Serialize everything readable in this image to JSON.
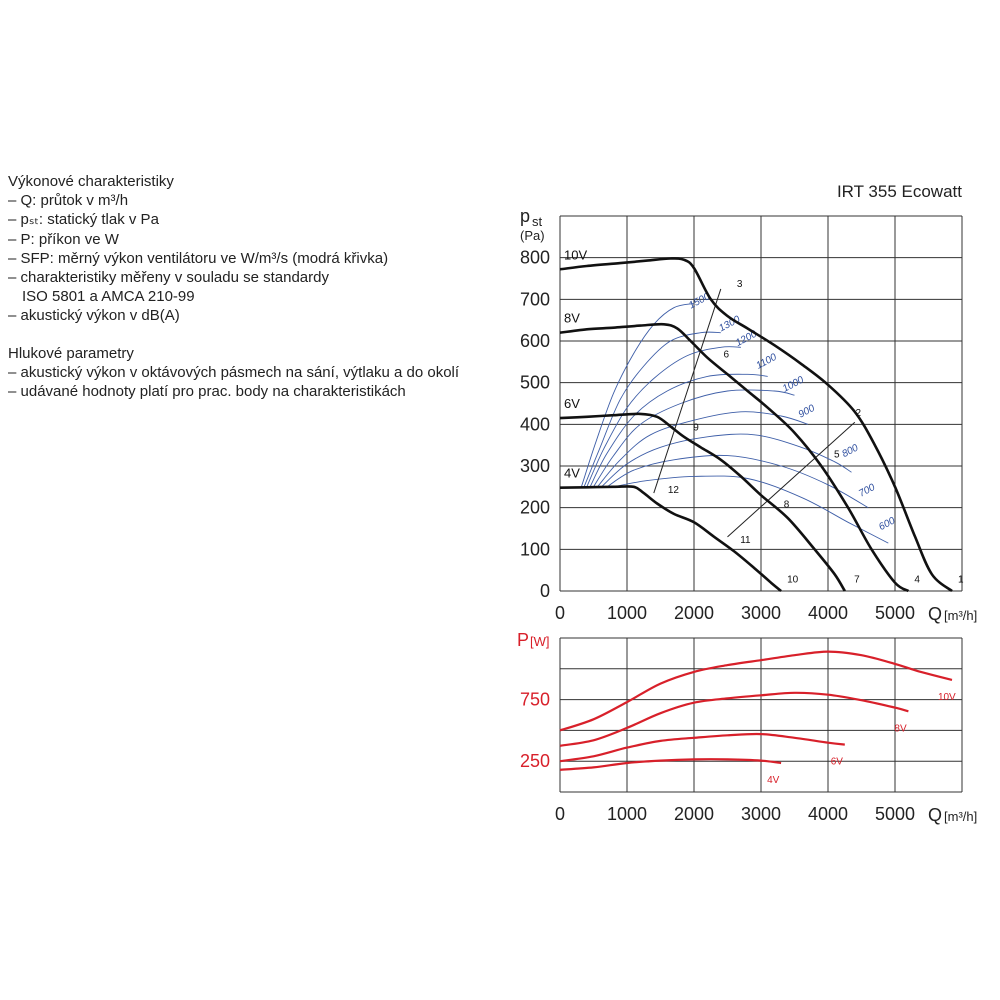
{
  "description": {
    "heading1": "Výkonové charakteristiky",
    "lines1": [
      "– Q: průtok v m³/h",
      "– pₛₜ: statický tlak v Pa",
      "– P: příkon ve W",
      "– SFP: měrný výkon ventilátoru ve W/m³/s (modrá křivka)",
      "– charakteristiky měřeny v souladu se standardy",
      "ISO 5801 a AMCA 210-99",
      "– akustický výkon v dB(A)"
    ],
    "heading2": "Hlukové parametry",
    "lines2": [
      "– akustický výkon v oktávových pásmech na sání, výtlaku a do okolí",
      "– udávané hodnoty platí pro prac. body na charakteristikách"
    ]
  },
  "chart_data": [
    {
      "type": "line",
      "title": "IRT 355 Ecowatt",
      "ylabel": "pst",
      "ylabel_unit": "(Pa)",
      "xlabel": "Q",
      "xlabel_unit": "[m³/h]",
      "xlim": [
        0,
        6000
      ],
      "ylim": [
        0,
        900
      ],
      "xticks": [
        "0",
        "1000",
        "2000",
        "3000",
        "4000",
        "5000"
      ],
      "yticks": [
        "0",
        "100",
        "200",
        "300",
        "400",
        "500",
        "600",
        "700",
        "800"
      ],
      "grid": true,
      "colors": {
        "fan": "#111111",
        "sfp": "#3f5fa8",
        "op_line": "#222222"
      },
      "series": [
        {
          "name": "10V",
          "points": [
            [
              0,
              772
            ],
            [
              400,
              780
            ],
            [
              900,
              787
            ],
            [
              1300,
              793
            ],
            [
              1650,
              798
            ],
            [
              1850,
              795
            ],
            [
              2000,
              775
            ],
            [
              2250,
              700
            ],
            [
              2500,
              660
            ],
            [
              2800,
              630
            ],
            [
              3200,
              590
            ],
            [
              3600,
              545
            ],
            [
              4000,
              495
            ],
            [
              4400,
              430
            ],
            [
              4700,
              350
            ],
            [
              5000,
              250
            ],
            [
              5300,
              130
            ],
            [
              5550,
              40
            ],
            [
              5850,
              0
            ]
          ]
        },
        {
          "name": "8V",
          "points": [
            [
              0,
              620
            ],
            [
              400,
              628
            ],
            [
              800,
              632
            ],
            [
              1200,
              637
            ],
            [
              1550,
              640
            ],
            [
              1750,
              630
            ],
            [
              1950,
              600
            ],
            [
              2200,
              560
            ],
            [
              2500,
              520
            ],
            [
              2800,
              480
            ],
            [
              3100,
              440
            ],
            [
              3500,
              380
            ],
            [
              3900,
              300
            ],
            [
              4300,
              200
            ],
            [
              4650,
              100
            ],
            [
              5000,
              20
            ],
            [
              5200,
              0
            ]
          ]
        },
        {
          "name": "6V",
          "points": [
            [
              0,
              415
            ],
            [
              400,
              418
            ],
            [
              800,
              422
            ],
            [
              1200,
              425
            ],
            [
              1450,
              418
            ],
            [
              1650,
              395
            ],
            [
              1850,
              370
            ],
            [
              2100,
              345
            ],
            [
              2400,
              315
            ],
            [
              2700,
              275
            ],
            [
              3000,
              230
            ],
            [
              3400,
              175
            ],
            [
              3800,
              100
            ],
            [
              4100,
              40
            ],
            [
              4250,
              0
            ]
          ]
        },
        {
          "name": "4V",
          "points": [
            [
              0,
              248
            ],
            [
              400,
              249
            ],
            [
              800,
              250
            ],
            [
              1100,
              250
            ],
            [
              1250,
              235
            ],
            [
              1450,
              210
            ],
            [
              1700,
              185
            ],
            [
              2000,
              165
            ],
            [
              2300,
              130
            ],
            [
              2600,
              95
            ],
            [
              2900,
              55
            ],
            [
              3150,
              20
            ],
            [
              3300,
              0
            ]
          ]
        }
      ],
      "sfp_curves": [
        {
          "label": "1500",
          "label_at": [
            2100,
            690
          ],
          "points": [
            [
              320,
              250
            ],
            [
              520,
              350
            ],
            [
              800,
              475
            ],
            [
              1100,
              570
            ],
            [
              1400,
              640
            ],
            [
              1700,
              680
            ],
            [
              2000,
              690
            ]
          ]
        },
        {
          "label": "1300",
          "label_at": [
            2550,
            635
          ],
          "points": [
            [
              360,
              250
            ],
            [
              600,
              345
            ],
            [
              900,
              460
            ],
            [
              1250,
              540
            ],
            [
              1650,
              600
            ],
            [
              2100,
              620
            ],
            [
              2400,
              620
            ]
          ]
        },
        {
          "label": "1200",
          "label_at": [
            2800,
            600
          ],
          "points": [
            [
              400,
              250
            ],
            [
              650,
              340
            ],
            [
              1000,
              440
            ],
            [
              1400,
              510
            ],
            [
              1900,
              565
            ],
            [
              2400,
              585
            ],
            [
              2700,
              585
            ]
          ]
        },
        {
          "label": "1100",
          "label_at": [
            3100,
            545
          ],
          "points": [
            [
              450,
              250
            ],
            [
              700,
              330
            ],
            [
              1100,
              420
            ],
            [
              1600,
              480
            ],
            [
              2200,
              515
            ],
            [
              2800,
              520
            ],
            [
              3100,
              515
            ]
          ]
        },
        {
          "label": "1000",
          "label_at": [
            3500,
            490
          ],
          "points": [
            [
              500,
              250
            ],
            [
              800,
              325
            ],
            [
              1200,
              400
            ],
            [
              1800,
              450
            ],
            [
              2500,
              480
            ],
            [
              3200,
              480
            ],
            [
              3500,
              470
            ]
          ]
        },
        {
          "label": "900",
          "label_at": [
            3700,
            425
          ],
          "points": [
            [
              560,
              250
            ],
            [
              900,
              315
            ],
            [
              1350,
              375
            ],
            [
              2000,
              410
            ],
            [
              2700,
              430
            ],
            [
              3300,
              420
            ],
            [
              3700,
              400
            ]
          ]
        },
        {
          "label": "800",
          "label_at": [
            4350,
            330
          ],
          "points": [
            [
              620,
              250
            ],
            [
              1000,
              305
            ],
            [
              1500,
              345
            ],
            [
              2200,
              370
            ],
            [
              2900,
              375
            ],
            [
              3600,
              345
            ],
            [
              4100,
              310
            ],
            [
              4350,
              285
            ]
          ]
        },
        {
          "label": "700",
          "label_at": [
            4600,
            235
          ],
          "points": [
            [
              700,
              250
            ],
            [
              1100,
              290
            ],
            [
              1700,
              315
            ],
            [
              2500,
              325
            ],
            [
              3300,
              300
            ],
            [
              4000,
              255
            ],
            [
              4600,
              200
            ]
          ]
        },
        {
          "label": "600",
          "label_at": [
            4900,
            155
          ],
          "points": [
            [
              800,
              250
            ],
            [
              1300,
              265
            ],
            [
              2000,
              275
            ],
            [
              2800,
              270
            ],
            [
              3600,
              225
            ],
            [
              4300,
              165
            ],
            [
              4900,
              115
            ]
          ]
        }
      ],
      "operating_lines": [
        {
          "points": [
            [
              1400,
              235
            ],
            [
              2400,
              725
            ]
          ]
        },
        {
          "points": [
            [
              2500,
              130
            ],
            [
              4400,
              405
            ]
          ]
        }
      ],
      "point_labels": [
        {
          "label": "1",
          "at": [
            5850,
            20
          ]
        },
        {
          "label": "2",
          "at": [
            4320,
            420
          ]
        },
        {
          "label": "3",
          "at": [
            2550,
            730
          ]
        },
        {
          "label": "4",
          "at": [
            5200,
            20
          ]
        },
        {
          "label": "5",
          "at": [
            4000,
            320
          ]
        },
        {
          "label": "6",
          "at": [
            2350,
            560
          ]
        },
        {
          "label": "7",
          "at": [
            4300,
            20
          ]
        },
        {
          "label": "8",
          "at": [
            3250,
            200
          ]
        },
        {
          "label": "9",
          "at": [
            1900,
            385
          ]
        },
        {
          "label": "10",
          "at": [
            3300,
            20
          ]
        },
        {
          "label": "11",
          "at": [
            2600,
            115
          ]
        },
        {
          "label": "12",
          "at": [
            1520,
            235
          ]
        }
      ]
    },
    {
      "type": "line",
      "title": "",
      "ylabel": "P",
      "ylabel_unit": "[W]",
      "xlabel": "Q",
      "xlabel_unit": "[m³/h]",
      "xlim": [
        0,
        6000
      ],
      "ylim": [
        0,
        1250
      ],
      "yticks": [
        "250",
        "750"
      ],
      "xticks": [
        "0",
        "1000",
        "2000",
        "3000",
        "4000",
        "5000"
      ],
      "grid": true,
      "colors": {
        "power": "#d8202a"
      },
      "series": [
        {
          "name": "10V",
          "points": [
            [
              0,
              500
            ],
            [
              500,
              590
            ],
            [
              1000,
              730
            ],
            [
              1500,
              880
            ],
            [
              2000,
              975
            ],
            [
              2500,
              1030
            ],
            [
              3000,
              1070
            ],
            [
              3500,
              1110
            ],
            [
              4000,
              1140
            ],
            [
              4500,
              1110
            ],
            [
              5000,
              1040
            ],
            [
              5350,
              980
            ],
            [
              5850,
              910
            ]
          ]
        },
        {
          "name": "8V",
          "points": [
            [
              0,
              375
            ],
            [
              500,
              420
            ],
            [
              1000,
              520
            ],
            [
              1500,
              640
            ],
            [
              2000,
              725
            ],
            [
              2500,
              760
            ],
            [
              3000,
              785
            ],
            [
              3500,
              805
            ],
            [
              4000,
              790
            ],
            [
              4500,
              745
            ],
            [
              5000,
              685
            ],
            [
              5200,
              655
            ]
          ]
        },
        {
          "name": "6V",
          "points": [
            [
              0,
              250
            ],
            [
              500,
              290
            ],
            [
              1000,
              360
            ],
            [
              1500,
              415
            ],
            [
              2000,
              440
            ],
            [
              2500,
              460
            ],
            [
              3000,
              470
            ],
            [
              3500,
              440
            ],
            [
              4000,
              400
            ],
            [
              4250,
              385
            ]
          ]
        },
        {
          "name": "4V",
          "points": [
            [
              0,
              180
            ],
            [
              500,
              200
            ],
            [
              1000,
              235
            ],
            [
              1500,
              255
            ],
            [
              2000,
              265
            ],
            [
              2500,
              265
            ],
            [
              3000,
              255
            ],
            [
              3300,
              235
            ]
          ]
        }
      ]
    }
  ]
}
